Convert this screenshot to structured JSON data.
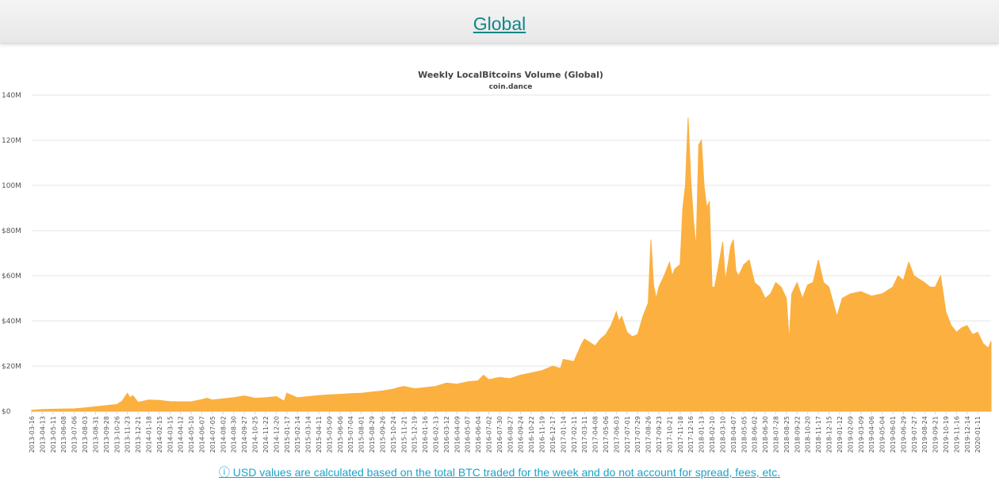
{
  "header": {
    "title": "Global"
  },
  "footnote": {
    "icon": "info-circle-icon",
    "text": "ⓘ USD values are calculated based on the total BTC traded for the week and do not account for spread, fees, etc."
  },
  "chart_data": {
    "type": "area",
    "title": "Weekly LocalBitcoins Volume (Global)",
    "subtitle": "coin.dance",
    "xlabel": "",
    "ylabel": "",
    "color": "#fbb040",
    "grid": true,
    "legend": false,
    "ylim": [
      0,
      140000000
    ],
    "yticks": [
      0,
      20000000,
      40000000,
      60000000,
      80000000,
      100000000,
      120000000,
      140000000
    ],
    "ytick_labels": [
      "$0",
      "$20M",
      "$40M",
      "$60M",
      "$80M",
      "100M",
      "120M",
      "140M"
    ],
    "xlim": [
      "2013-03-16",
      "2020-02-15"
    ],
    "xtick_labels": [
      "2013-03-16",
      "2013-04-13",
      "2013-05-11",
      "2013-06-08",
      "2013-07-06",
      "2013-08-03",
      "2013-08-31",
      "2013-09-28",
      "2013-10-26",
      "2013-11-23",
      "2013-12-21",
      "2014-01-18",
      "2014-02-15",
      "2014-03-15",
      "2014-04-12",
      "2014-05-10",
      "2014-06-07",
      "2014-07-05",
      "2014-08-02",
      "2014-08-30",
      "2014-09-27",
      "2014-10-25",
      "2014-11-22",
      "2014-12-20",
      "2015-01-17",
      "2015-02-14",
      "2015-03-14",
      "2015-04-11",
      "2015-05-09",
      "2015-06-06",
      "2015-07-04",
      "2015-08-01",
      "2015-08-29",
      "2015-09-26",
      "2015-10-24",
      "2015-11-21",
      "2015-12-19",
      "2016-01-16",
      "2016-02-13",
      "2016-03-12",
      "2016-04-09",
      "2016-05-07",
      "2016-06-04",
      "2016-07-02",
      "2016-07-30",
      "2016-08-27",
      "2016-09-24",
      "2016-10-22",
      "2016-11-19",
      "2016-12-17",
      "2017-01-14",
      "2017-02-11",
      "2017-03-11",
      "2017-04-08",
      "2017-05-06",
      "2017-06-03",
      "2017-07-01",
      "2017-07-29",
      "2017-08-26",
      "2017-09-23",
      "2017-10-21",
      "2017-11-18",
      "2017-12-16",
      "2018-01-13",
      "2018-02-10",
      "2018-03-10",
      "2018-04-07",
      "2018-05-05",
      "2018-06-02",
      "2018-06-30",
      "2018-07-28",
      "2018-08-25",
      "2018-09-22",
      "2018-10-20",
      "2018-11-17",
      "2018-12-15",
      "2019-01-12",
      "2019-02-09",
      "2019-03-09",
      "2019-04-06",
      "2019-05-04",
      "2019-06-01",
      "2019-06-29",
      "2019-07-27",
      "2019-08-24",
      "2019-09-21",
      "2019-10-19",
      "2019-11-16",
      "2019-12-14",
      "2020-01-11"
    ],
    "series": [
      {
        "x": [
          "2013-03-16",
          "2013-04-13",
          "2013-05-11",
          "2013-06-08",
          "2013-07-06",
          "2013-08-03",
          "2013-08-31",
          "2013-09-28",
          "2013-10-26",
          "2013-11-09",
          "2013-11-23",
          "2013-11-30",
          "2013-12-07",
          "2013-12-21",
          "2014-01-04",
          "2014-01-18",
          "2014-02-15",
          "2014-03-15",
          "2014-04-12",
          "2014-05-10",
          "2014-06-07",
          "2014-06-21",
          "2014-07-05",
          "2014-08-02",
          "2014-08-30",
          "2014-09-27",
          "2014-10-25",
          "2014-11-22",
          "2014-12-20",
          "2015-01-10",
          "2015-01-17",
          "2015-02-14",
          "2015-03-14",
          "2015-04-11",
          "2015-05-09",
          "2015-06-06",
          "2015-07-04",
          "2015-08-01",
          "2015-08-29",
          "2015-09-26",
          "2015-10-24",
          "2015-11-07",
          "2015-11-21",
          "2015-12-19",
          "2016-01-16",
          "2016-02-13",
          "2016-03-12",
          "2016-04-09",
          "2016-05-07",
          "2016-06-04",
          "2016-06-18",
          "2016-07-02",
          "2016-07-30",
          "2016-08-27",
          "2016-09-24",
          "2016-10-22",
          "2016-11-19",
          "2016-12-17",
          "2017-01-07",
          "2017-01-14",
          "2017-02-11",
          "2017-03-04",
          "2017-03-11",
          "2017-04-08",
          "2017-04-22",
          "2017-05-06",
          "2017-05-20",
          "2017-06-03",
          "2017-06-10",
          "2017-06-17",
          "2017-07-01",
          "2017-07-15",
          "2017-07-29",
          "2017-08-12",
          "2017-08-26",
          "2017-09-02",
          "2017-09-09",
          "2017-09-16",
          "2017-09-23",
          "2017-10-07",
          "2017-10-21",
          "2017-10-28",
          "2017-11-04",
          "2017-11-18",
          "2017-11-25",
          "2017-12-02",
          "2017-12-09",
          "2017-12-16",
          "2017-12-23",
          "2017-12-30",
          "2018-01-06",
          "2018-01-13",
          "2018-01-20",
          "2018-01-27",
          "2018-02-03",
          "2018-02-10",
          "2018-02-17",
          "2018-03-03",
          "2018-03-10",
          "2018-03-17",
          "2018-03-24",
          "2018-03-31",
          "2018-04-07",
          "2018-04-14",
          "2018-04-21",
          "2018-05-05",
          "2018-05-19",
          "2018-06-02",
          "2018-06-16",
          "2018-06-30",
          "2018-07-14",
          "2018-07-28",
          "2018-08-11",
          "2018-08-25",
          "2018-09-01",
          "2018-09-08",
          "2018-09-22",
          "2018-10-06",
          "2018-10-20",
          "2018-11-03",
          "2018-11-17",
          "2018-12-01",
          "2018-12-15",
          "2019-01-05",
          "2019-01-19",
          "2019-02-09",
          "2019-03-09",
          "2019-04-06",
          "2019-05-04",
          "2019-06-01",
          "2019-06-15",
          "2019-06-29",
          "2019-07-13",
          "2019-07-27",
          "2019-08-24",
          "2019-09-07",
          "2019-09-21",
          "2019-10-05",
          "2019-10-19",
          "2019-11-02",
          "2019-11-16",
          "2019-11-30",
          "2019-12-14",
          "2019-12-28",
          "2020-01-11",
          "2020-01-25",
          "2020-02-08",
          "2020-02-15"
        ],
        "y": [
          500000,
          800000,
          900000,
          1000000,
          1100000,
          1500000,
          2000000,
          2500000,
          3000000,
          4500000,
          8000000,
          6000000,
          7000000,
          4000000,
          4500000,
          5000000,
          4800000,
          4300000,
          4200000,
          4200000,
          5200000,
          5800000,
          5000000,
          5500000,
          6000000,
          6800000,
          5800000,
          6000000,
          6500000,
          4500000,
          8000000,
          6000000,
          6500000,
          7000000,
          7300000,
          7500000,
          7800000,
          8000000,
          8500000,
          9000000,
          9800000,
          10500000,
          11000000,
          10000000,
          10500000,
          11000000,
          12500000,
          12000000,
          13000000,
          13500000,
          16000000,
          14000000,
          15000000,
          14500000,
          16000000,
          17000000,
          18000000,
          20000000,
          19000000,
          23000000,
          22000000,
          30000000,
          32000000,
          29000000,
          32000000,
          34000000,
          38000000,
          44000000,
          40000000,
          42000000,
          35000000,
          33000000,
          34000000,
          42000000,
          48000000,
          76000000,
          56000000,
          50000000,
          55000000,
          60000000,
          66000000,
          60000000,
          63000000,
          65000000,
          90000000,
          100000000,
          130000000,
          103000000,
          85000000,
          72000000,
          118000000,
          120000000,
          100000000,
          90000000,
          93000000,
          55000000,
          55000000,
          68000000,
          75000000,
          58000000,
          65000000,
          73000000,
          76000000,
          62000000,
          60000000,
          65000000,
          67000000,
          57000000,
          55000000,
          50000000,
          52000000,
          57000000,
          55000000,
          50000000,
          31000000,
          52000000,
          57000000,
          50000000,
          56000000,
          57000000,
          67000000,
          57000000,
          55000000,
          42000000,
          50000000,
          52000000,
          53000000,
          51000000,
          52000000,
          55000000,
          60000000,
          58000000,
          66000000,
          60000000,
          57000000,
          55000000,
          55000000,
          60000000,
          44000000,
          38000000,
          35000000,
          37000000,
          38000000,
          34000000,
          35000000,
          30000000,
          28000000,
          31000000
        ]
      }
    ]
  }
}
